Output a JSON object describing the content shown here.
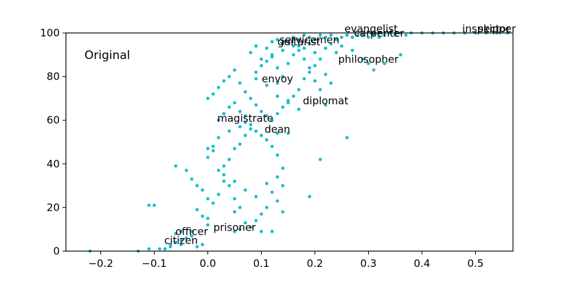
{
  "chart_data": {
    "type": "scatter",
    "panel_label": "Original",
    "xlim": [
      -0.265,
      0.57
    ],
    "ylim": [
      0,
      100
    ],
    "xticks": [
      -0.2,
      -0.1,
      0.0,
      0.1,
      0.2,
      0.3,
      0.4,
      0.5
    ],
    "xtick_labels": [
      "−0.2",
      "−0.1",
      "0.0",
      "0.1",
      "0.2",
      "0.3",
      "0.4",
      "0.5"
    ],
    "yticks": [
      0,
      20,
      40,
      60,
      80,
      100
    ],
    "ytick_labels": [
      "0",
      "20",
      "40",
      "60",
      "80",
      "100"
    ],
    "grid": false,
    "point_color": "#17becf",
    "labeled_points": [
      {
        "label": "evangelist",
        "x": 0.305,
        "y": 100
      },
      {
        "label": "carpenter",
        "x": 0.32,
        "y": 98
      },
      {
        "label": "inspector",
        "x": 0.52,
        "y": 100
      },
      {
        "label": "skipper",
        "x": 0.54,
        "y": 100
      },
      {
        "label": "servicemen",
        "x": 0.19,
        "y": 95
      },
      {
        "label": "guitarist",
        "x": 0.17,
        "y": 94
      },
      {
        "label": "philosopher",
        "x": 0.3,
        "y": 86
      },
      {
        "label": "envoy",
        "x": 0.13,
        "y": 77
      },
      {
        "label": "diplomat",
        "x": 0.22,
        "y": 67
      },
      {
        "label": "magistrate",
        "x": 0.07,
        "y": 59
      },
      {
        "label": "dean",
        "x": 0.13,
        "y": 54
      },
      {
        "label": "prisoner",
        "x": 0.05,
        "y": 9
      },
      {
        "label": "officer",
        "x": -0.03,
        "y": 7
      },
      {
        "label": "citizen",
        "x": -0.05,
        "y": 3
      }
    ],
    "points": [
      [
        -0.22,
        0
      ],
      [
        -0.13,
        0
      ],
      [
        -0.11,
        1
      ],
      [
        -0.08,
        1
      ],
      [
        -0.07,
        2
      ],
      [
        -0.07,
        3
      ],
      [
        -0.06,
        4
      ],
      [
        -0.05,
        5
      ],
      [
        -0.04,
        6
      ],
      [
        -0.06,
        8
      ],
      [
        -0.05,
        9
      ],
      [
        -0.03,
        9
      ],
      [
        -0.09,
        1
      ],
      [
        -0.02,
        2
      ],
      [
        -0.01,
        3
      ],
      [
        -0.11,
        21
      ],
      [
        -0.1,
        21
      ],
      [
        -0.06,
        39
      ],
      [
        -0.04,
        37
      ],
      [
        -0.03,
        33
      ],
      [
        -0.02,
        30
      ],
      [
        -0.01,
        28
      ],
      [
        0.0,
        24
      ],
      [
        -0.02,
        19
      ],
      [
        0.0,
        15
      ],
      [
        0.01,
        22
      ],
      [
        0.02,
        26
      ],
      [
        0.03,
        32
      ],
      [
        0.04,
        30
      ],
      [
        0.05,
        24
      ],
      [
        0.06,
        20
      ],
      [
        0.05,
        18
      ],
      [
        0.07,
        13
      ],
      [
        0.06,
        10
      ],
      [
        0.08,
        11
      ],
      [
        0.09,
        14
      ],
      [
        0.1,
        17
      ],
      [
        0.11,
        20
      ],
      [
        0.12,
        27
      ],
      [
        0.13,
        34
      ],
      [
        0.14,
        30
      ],
      [
        0.13,
        23
      ],
      [
        0.14,
        18
      ],
      [
        0.19,
        25
      ],
      [
        0.21,
        42
      ],
      [
        0.26,
        52
      ],
      [
        0.15,
        54
      ],
      [
        0.0,
        43
      ],
      [
        0.0,
        47
      ],
      [
        0.01,
        46
      ],
      [
        0.02,
        37
      ],
      [
        0.03,
        39
      ],
      [
        0.04,
        42
      ],
      [
        0.05,
        47
      ],
      [
        0.06,
        49
      ],
      [
        0.07,
        53
      ],
      [
        0.08,
        56
      ],
      [
        0.09,
        55
      ],
      [
        0.1,
        53
      ],
      [
        0.11,
        51
      ],
      [
        0.12,
        48
      ],
      [
        0.13,
        44
      ],
      [
        0.14,
        38
      ],
      [
        0.02,
        60
      ],
      [
        0.03,
        63
      ],
      [
        0.04,
        66
      ],
      [
        0.05,
        68
      ],
      [
        0.06,
        64
      ],
      [
        0.07,
        62
      ],
      [
        0.08,
        58
      ],
      [
        0.0,
        70
      ],
      [
        0.01,
        72
      ],
      [
        0.02,
        75
      ],
      [
        0.03,
        78
      ],
      [
        0.04,
        80
      ],
      [
        0.05,
        83
      ],
      [
        0.06,
        77
      ],
      [
        0.07,
        73
      ],
      [
        0.08,
        70
      ],
      [
        0.09,
        67
      ],
      [
        0.1,
        64
      ],
      [
        0.11,
        62
      ],
      [
        0.12,
        60
      ],
      [
        0.13,
        63
      ],
      [
        0.14,
        66
      ],
      [
        0.15,
        69
      ],
      [
        0.16,
        71
      ],
      [
        0.17,
        74
      ],
      [
        0.18,
        79
      ],
      [
        0.19,
        82
      ],
      [
        0.2,
        85
      ],
      [
        0.21,
        88
      ],
      [
        0.22,
        81
      ],
      [
        0.23,
        77
      ],
      [
        0.09,
        82
      ],
      [
        0.1,
        85
      ],
      [
        0.11,
        87
      ],
      [
        0.12,
        89
      ],
      [
        0.13,
        84
      ],
      [
        0.14,
        80
      ],
      [
        0.15,
        86
      ],
      [
        0.16,
        90
      ],
      [
        0.17,
        92
      ],
      [
        0.18,
        88
      ],
      [
        0.19,
        84
      ],
      [
        0.2,
        78
      ],
      [
        0.21,
        74
      ],
      [
        0.08,
        91
      ],
      [
        0.09,
        94
      ],
      [
        0.11,
        93
      ],
      [
        0.12,
        96
      ],
      [
        0.13,
        97
      ],
      [
        0.14,
        95
      ],
      [
        0.15,
        96
      ],
      [
        0.16,
        98
      ],
      [
        0.17,
        97
      ],
      [
        0.18,
        99
      ],
      [
        0.19,
        98
      ],
      [
        0.2,
        97
      ],
      [
        0.21,
        99
      ],
      [
        0.22,
        98
      ],
      [
        0.23,
        99
      ],
      [
        0.24,
        97
      ],
      [
        0.25,
        98
      ],
      [
        0.26,
        99
      ],
      [
        0.27,
        98
      ],
      [
        0.28,
        99
      ],
      [
        0.29,
        99
      ],
      [
        0.3,
        98
      ],
      [
        0.31,
        99
      ],
      [
        0.32,
        100
      ],
      [
        0.33,
        99
      ],
      [
        0.34,
        100
      ],
      [
        0.35,
        99
      ],
      [
        0.36,
        100
      ],
      [
        0.37,
        99
      ],
      [
        0.38,
        100
      ],
      [
        0.4,
        100
      ],
      [
        0.42,
        100
      ],
      [
        0.44,
        100
      ],
      [
        0.46,
        100
      ],
      [
        0.48,
        100
      ],
      [
        0.5,
        100
      ],
      [
        0.52,
        100
      ],
      [
        0.54,
        100
      ],
      [
        0.56,
        100
      ],
      [
        0.31,
        83
      ],
      [
        0.33,
        86
      ],
      [
        0.36,
        90
      ],
      [
        0.29,
        88
      ],
      [
        0.27,
        92
      ],
      [
        0.25,
        94
      ],
      [
        0.24,
        91
      ],
      [
        0.23,
        95
      ],
      [
        0.22,
        93
      ],
      [
        0.2,
        91
      ],
      [
        0.18,
        93
      ],
      [
        0.16,
        94
      ],
      [
        0.14,
        92
      ],
      [
        0.12,
        90
      ],
      [
        0.1,
        88
      ],
      [
        0.09,
        79
      ],
      [
        0.11,
        76
      ],
      [
        0.13,
        71
      ],
      [
        0.15,
        68
      ],
      [
        0.17,
        65
      ],
      [
        0.06,
        57
      ],
      [
        0.04,
        55
      ],
      [
        0.02,
        52
      ],
      [
        0.01,
        48
      ],
      [
        0.03,
        35
      ],
      [
        0.05,
        32
      ],
      [
        0.07,
        28
      ],
      [
        0.09,
        25
      ],
      [
        0.11,
        31
      ],
      [
        0.1,
        9
      ],
      [
        0.12,
        9
      ],
      [
        0.0,
        12
      ],
      [
        -0.01,
        16
      ]
    ]
  }
}
